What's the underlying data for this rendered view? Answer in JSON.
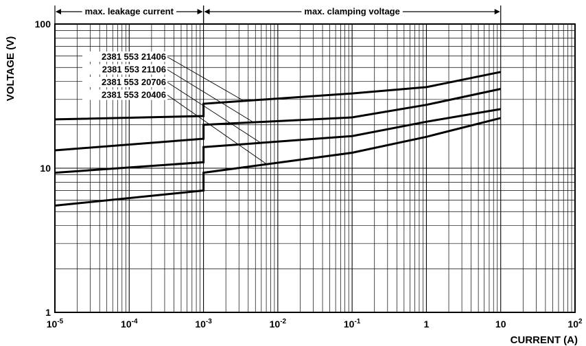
{
  "chart_data": {
    "type": "line",
    "xlabel": "CURRENT (A)",
    "ylabel": "VOLTAGE (V)",
    "x_scale": "log",
    "y_scale": "log",
    "xlim": [
      1e-05,
      100
    ],
    "ylim": [
      1,
      100
    ],
    "grid": true,
    "x_ticks": [
      {
        "base": "10",
        "exp": "-5"
      },
      {
        "base": "10",
        "exp": "-4"
      },
      {
        "base": "10",
        "exp": "-3"
      },
      {
        "base": "10",
        "exp": "-2"
      },
      {
        "base": "10",
        "exp": "-1"
      },
      {
        "base": "1",
        "exp": ""
      },
      {
        "base": "10",
        "exp": ""
      },
      {
        "base": "10",
        "exp": "2"
      }
    ],
    "y_ticks": [
      "1",
      "10",
      "100"
    ],
    "regions": [
      {
        "label": "max. leakage current",
        "from": 1e-05,
        "to": 0.001
      },
      {
        "label": "max. clamping voltage",
        "from": 0.001,
        "to": 10
      }
    ],
    "series": [
      {
        "name": "2381 553 21406",
        "points": [
          [
            1e-05,
            21.8
          ],
          [
            0.001,
            23.0
          ],
          [
            0.001,
            28.0
          ],
          [
            0.1,
            33.0
          ],
          [
            1,
            36.5
          ],
          [
            10,
            46.5
          ]
        ]
      },
      {
        "name": "2381 553 21106",
        "points": [
          [
            1e-05,
            13.3
          ],
          [
            0.001,
            16.0
          ],
          [
            0.001,
            20.0
          ],
          [
            0.1,
            22.5
          ],
          [
            1,
            27.5
          ],
          [
            10,
            35.5
          ]
        ]
      },
      {
        "name": "2381 553 20706",
        "points": [
          [
            1e-05,
            9.3
          ],
          [
            0.001,
            11.0
          ],
          [
            0.001,
            14.0
          ],
          [
            0.1,
            16.7
          ],
          [
            1,
            21.0
          ],
          [
            10,
            25.7
          ]
        ]
      },
      {
        "name": "2381 553 20406",
        "points": [
          [
            1e-05,
            5.5
          ],
          [
            0.001,
            7.0
          ],
          [
            0.001,
            9.3
          ],
          [
            0.1,
            12.8
          ],
          [
            1,
            16.5
          ],
          [
            10,
            22.3
          ]
        ]
      }
    ]
  }
}
